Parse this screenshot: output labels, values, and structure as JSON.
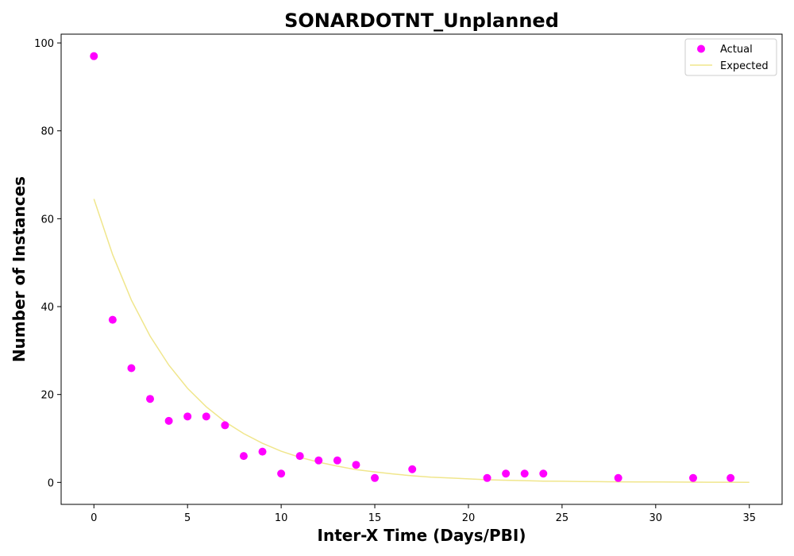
{
  "chart_data": {
    "type": "scatter",
    "title": "SONARDOTNT_Unplanned",
    "xlabel": "Inter-X Time (Days/PBI)",
    "ylabel": "Number of Instances",
    "xlim": [
      -1.75,
      36.75
    ],
    "ylim": [
      -5,
      102
    ],
    "xticks": [
      0,
      5,
      10,
      15,
      20,
      25,
      30,
      35
    ],
    "yticks": [
      0,
      20,
      40,
      60,
      80,
      100
    ],
    "grid": false,
    "legend_position": "top-right",
    "series": [
      {
        "name": "Actual",
        "kind": "scatter",
        "color": "#ff00ff",
        "x": [
          0,
          1,
          2,
          3,
          4,
          5,
          6,
          7,
          8,
          9,
          10,
          11,
          12,
          13,
          14,
          15,
          17,
          21,
          22,
          23,
          24,
          28,
          32,
          34
        ],
        "y": [
          97,
          37,
          26,
          19,
          14,
          15,
          15,
          13,
          6,
          7,
          2,
          6,
          5,
          5,
          4,
          1,
          3,
          1,
          2,
          2,
          2,
          1,
          1,
          1
        ]
      },
      {
        "name": "Expected",
        "kind": "line",
        "color": "#f0e68c",
        "x": [
          0,
          1,
          2,
          3,
          4,
          5,
          6,
          7,
          8,
          9,
          10,
          11,
          12,
          13,
          14,
          15,
          16,
          17,
          18,
          19,
          20,
          21,
          22,
          23,
          24,
          25,
          26,
          27,
          28,
          29,
          30,
          31,
          32,
          33,
          34,
          35
        ],
        "y": [
          64.5,
          51.8,
          41.5,
          33.3,
          26.7,
          21.4,
          17.2,
          13.8,
          11.1,
          8.9,
          7.1,
          5.7,
          4.6,
          3.7,
          2.9,
          2.4,
          1.9,
          1.5,
          1.2,
          1.0,
          0.8,
          0.6,
          0.5,
          0.4,
          0.3,
          0.26,
          0.21,
          0.17,
          0.13,
          0.11,
          0.09,
          0.07,
          0.06,
          0.05,
          0.04,
          0.03
        ]
      }
    ]
  }
}
